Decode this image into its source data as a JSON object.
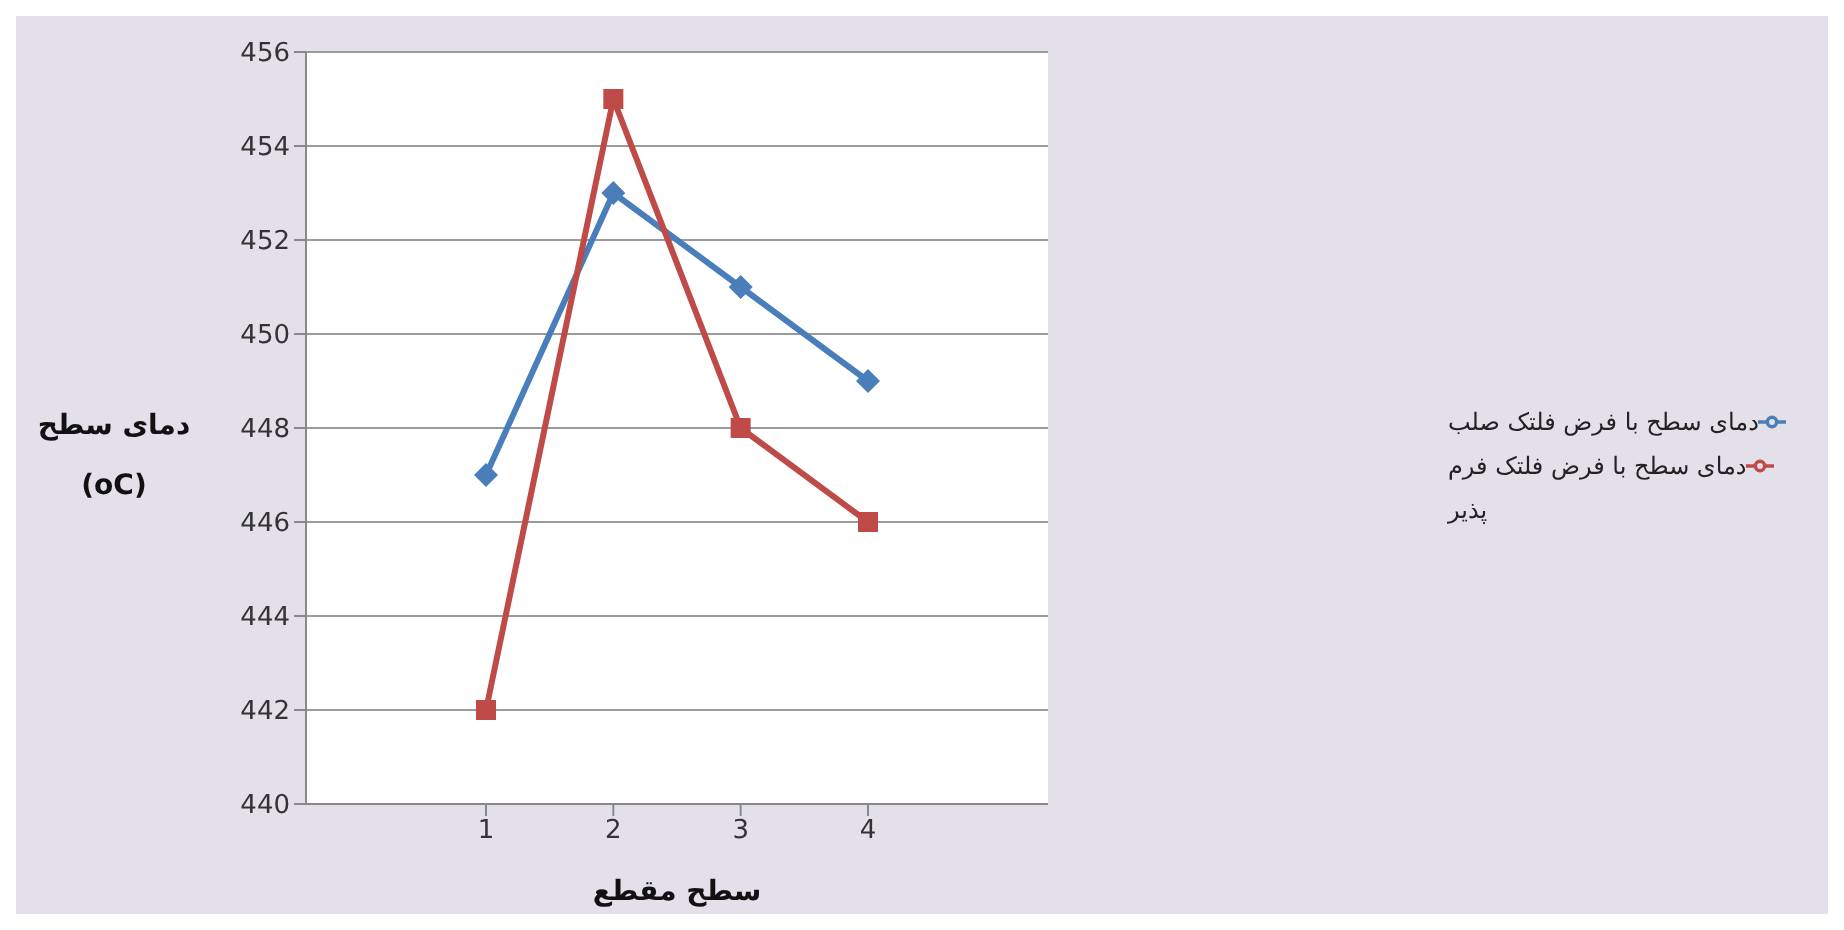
{
  "chart_data": {
    "type": "line",
    "xlabel": "سطح مقطع",
    "ylabel": "دمای سطح (oC)",
    "categories": [
      "1",
      "2",
      "3",
      "4"
    ],
    "series": [
      {
        "name": "دمای سطح با فرض فلتک صلب",
        "color": "#4a7ebb",
        "marker": "diamond",
        "values": [
          447,
          453,
          451,
          449
        ]
      },
      {
        "name": "دمای سطح با فرض فلتک فرم پذیر",
        "color": "#be4b48",
        "marker": "square",
        "values": [
          442,
          455,
          448,
          446
        ]
      }
    ],
    "ylim": [
      440,
      456
    ],
    "yticks": [
      440,
      442,
      444,
      446,
      448,
      450,
      452,
      454,
      456
    ],
    "grid": "y",
    "legend": "right",
    "line_style": "solid"
  }
}
